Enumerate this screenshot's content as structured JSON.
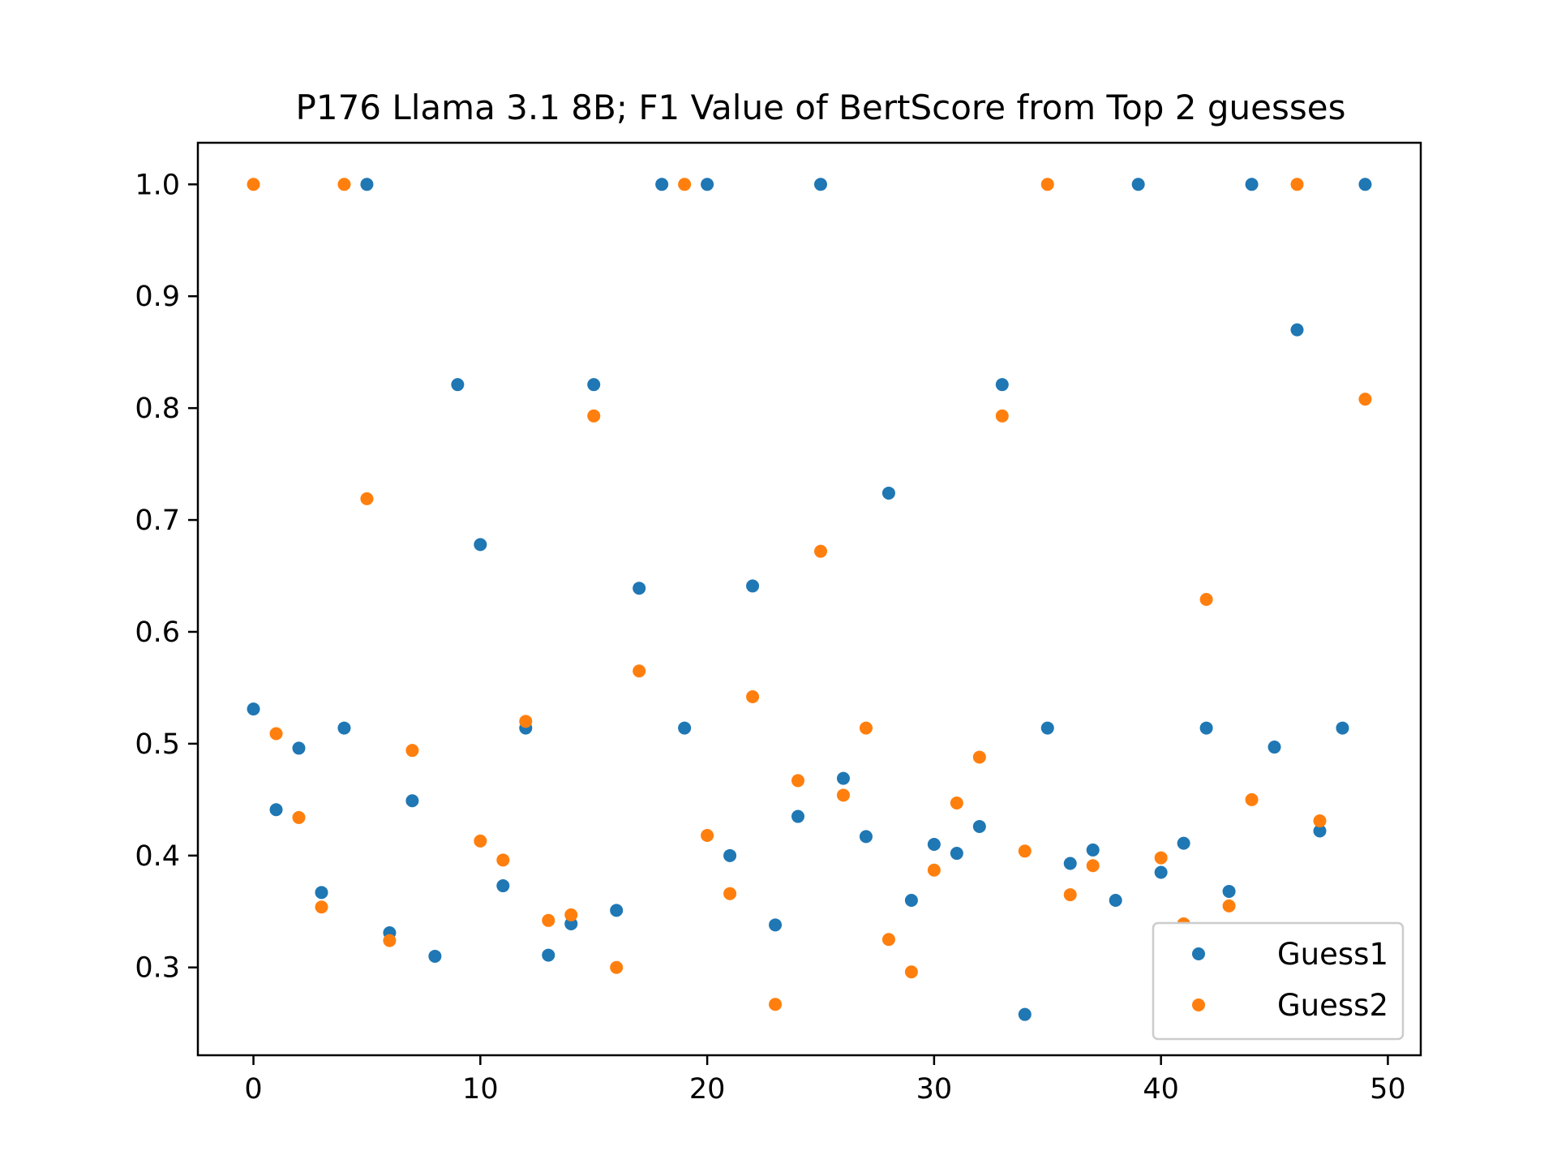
{
  "chart_data": {
    "type": "scatter",
    "title": "P176 Llama 3.1 8B; F1 Value of BertScore from Top 2 guesses",
    "xlabel": "",
    "ylabel": "",
    "xlim": [
      -2.45,
      51.45
    ],
    "ylim": [
      0.2215,
      1.0372
    ],
    "xticks": [
      0,
      10,
      20,
      30,
      40,
      50
    ],
    "yticks": [
      0.3,
      0.4,
      0.5,
      0.6,
      0.7,
      0.8,
      0.9,
      1.0
    ],
    "grid": false,
    "legend_position": "lower right",
    "series": [
      {
        "name": "Guess1",
        "color": "#1f77b4",
        "x": [
          0,
          1,
          2,
          3,
          4,
          5,
          6,
          7,
          8,
          9,
          10,
          11,
          12,
          13,
          14,
          15,
          16,
          17,
          18,
          19,
          20,
          21,
          22,
          23,
          24,
          25,
          26,
          27,
          28,
          29,
          30,
          31,
          32,
          33,
          34,
          35,
          36,
          37,
          38,
          39,
          40,
          41,
          42,
          43,
          44,
          45,
          46,
          47,
          48,
          49
        ],
        "y": [
          0.531,
          0.441,
          0.496,
          0.367,
          0.514,
          1.0,
          0.331,
          0.449,
          0.31,
          0.821,
          0.678,
          0.373,
          0.514,
          0.311,
          0.339,
          0.821,
          0.351,
          0.639,
          1.0,
          0.514,
          1.0,
          0.4,
          0.641,
          0.338,
          0.435,
          1.0,
          0.469,
          0.417,
          0.724,
          0.36,
          0.41,
          0.402,
          0.426,
          0.821,
          0.258,
          0.514,
          0.393,
          0.405,
          0.36,
          1.0,
          0.385,
          0.411,
          0.514,
          0.368,
          1.0,
          0.497,
          0.87,
          0.422,
          0.514,
          1.0
        ]
      },
      {
        "name": "Guess2",
        "color": "#ff7f0e",
        "x": [
          0,
          1,
          2,
          3,
          4,
          5,
          6,
          7,
          10,
          11,
          12,
          13,
          14,
          15,
          16,
          17,
          19,
          20,
          21,
          22,
          23,
          24,
          25,
          26,
          27,
          28,
          29,
          30,
          31,
          32,
          33,
          34,
          35,
          36,
          37,
          40,
          41,
          42,
          43,
          44,
          46,
          47,
          49
        ],
        "y": [
          1.0,
          0.509,
          0.434,
          0.354,
          1.0,
          0.719,
          0.324,
          0.494,
          0.413,
          0.396,
          0.52,
          0.342,
          0.347,
          0.793,
          0.3,
          0.565,
          1.0,
          0.418,
          0.366,
          0.542,
          0.267,
          0.467,
          0.672,
          0.454,
          0.514,
          0.325,
          0.296,
          0.387,
          0.447,
          0.488,
          0.793,
          0.404,
          1.0,
          0.365,
          0.391,
          0.398,
          0.339,
          0.629,
          0.355,
          0.45,
          1.0,
          0.431,
          0.808
        ]
      }
    ]
  }
}
